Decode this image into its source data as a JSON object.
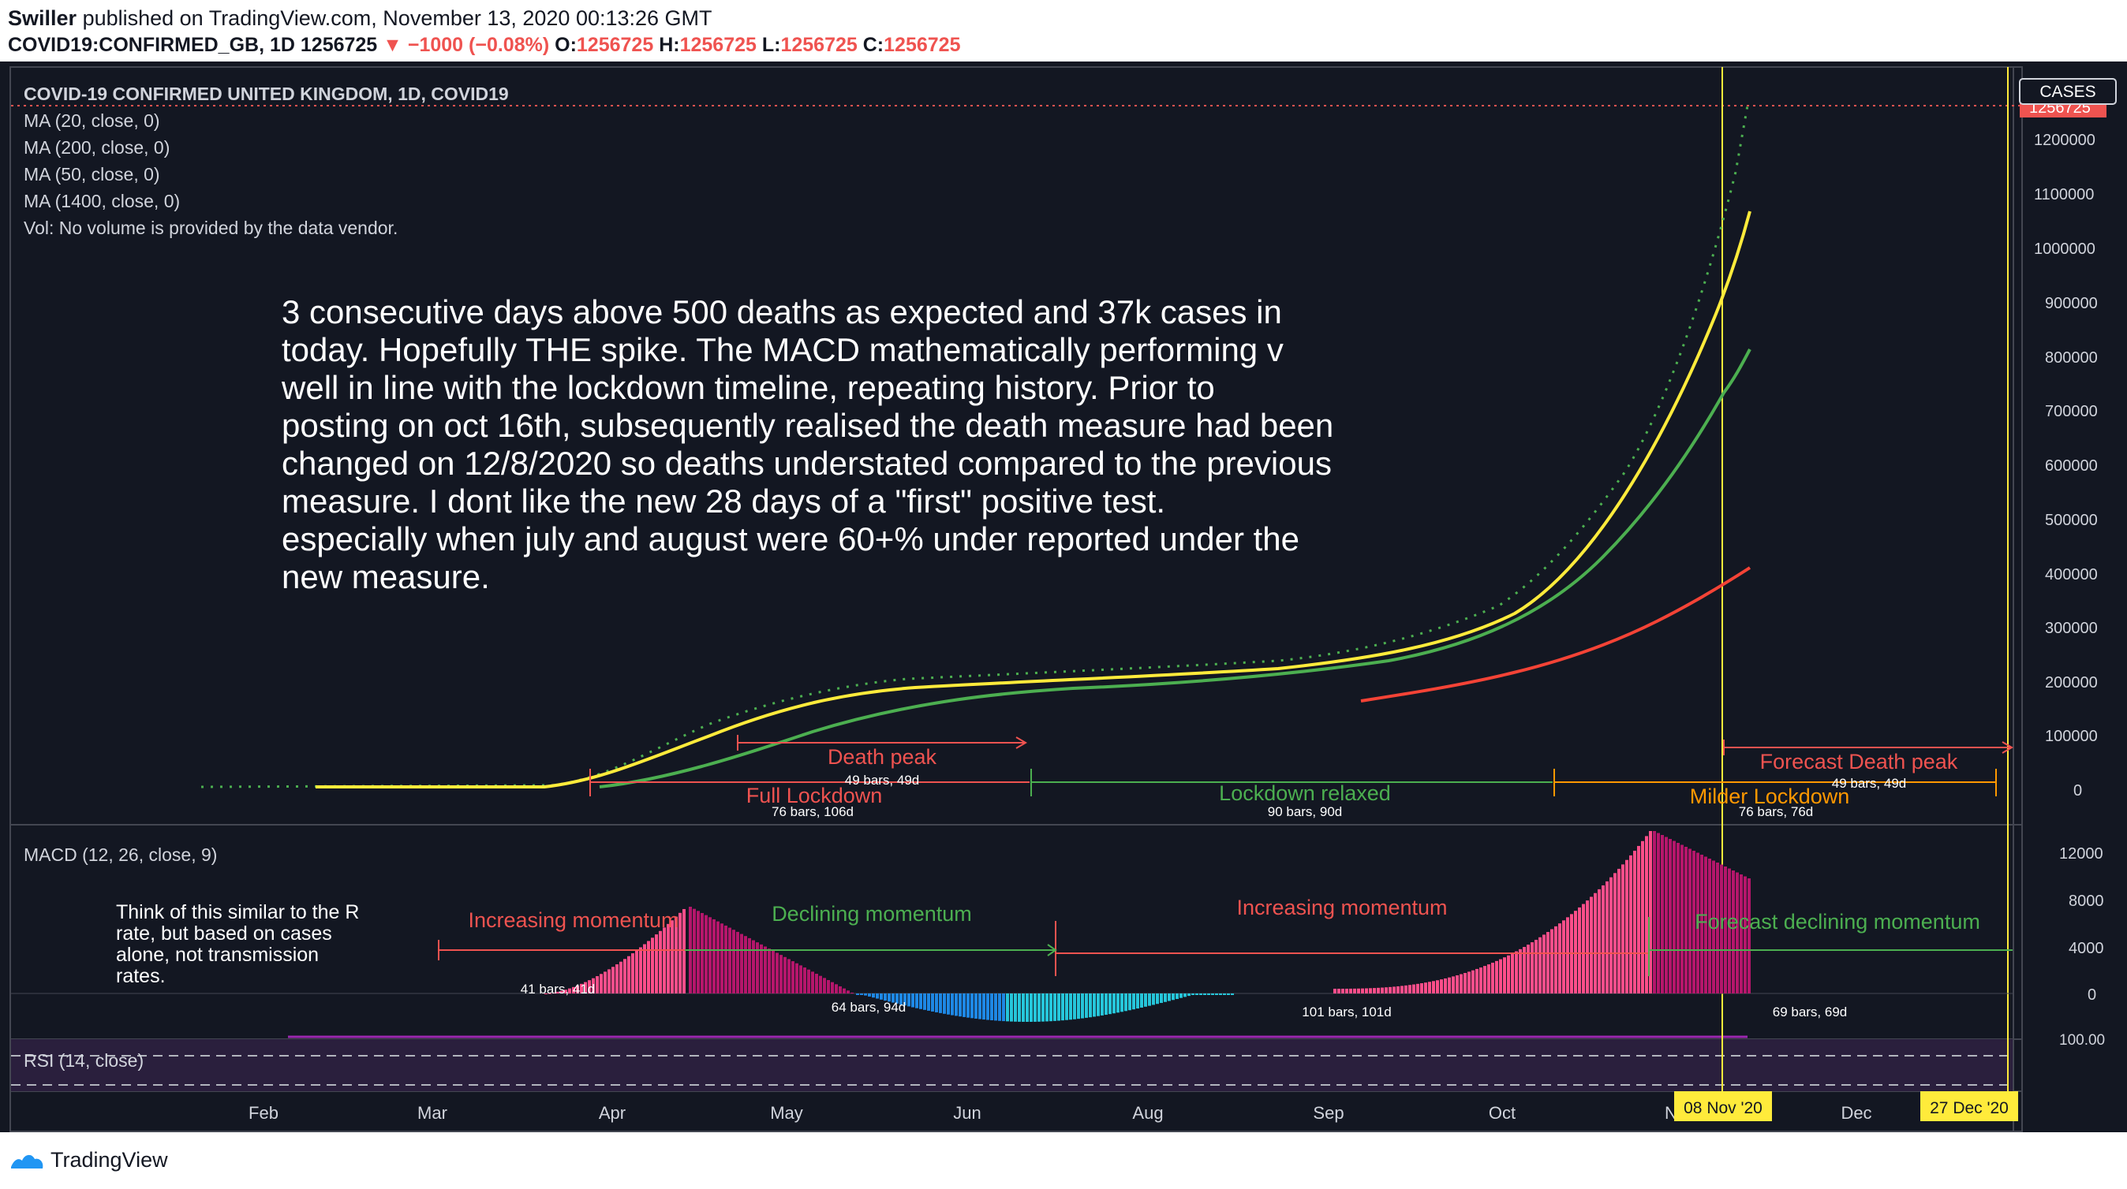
{
  "header": {
    "author": "Swiller",
    "published_text": "published on TradingView.com, November 13, 2020 00:13:26 GMT",
    "symbol_line": "COVID19:CONFIRMED_GB, 1D  1256725",
    "change": "−1000 (−0.08%)",
    "o_label": "O:",
    "o_value": "1256725",
    "h_label": "H:",
    "h_value": "1256725",
    "l_label": "L:",
    "l_value": "1256725",
    "c_label": "C:",
    "c_value": "1256725"
  },
  "legend": {
    "title": "COVID-19 CONFIRMED UNITED KINGDOM, 1D, COVID19",
    "ma20": "MA (20, close, 0)",
    "ma200": "MA (200, close, 0)",
    "ma50": "MA (50, close, 0)",
    "ma1400": "MA (1400, close, 0)",
    "vol": "Vol: No volume is provided by the data vendor."
  },
  "annotation": [
    "3 consecutive days above 500 deaths  as expected and 37k cases in",
    "today. Hopefully THE spike. The MACD mathematically performing v",
    "well in line with the lockdown timeline, repeating history. Prior to",
    "posting on oct 16th, subsequently realised the death measure had been",
    "changed on 12/8/2020 so deaths understated compared to the previous",
    "measure. I dont like the new 28 days of a \"first\" positive test.",
    "especially when july and august were 60+% under reported under the",
    "new measure."
  ],
  "price_axis": {
    "ticks": [
      "1200000",
      "1100000",
      "1000000",
      "900000",
      "800000",
      "700000",
      "600000",
      "500000",
      "400000",
      "300000",
      "200000",
      "100000",
      "0"
    ],
    "badge": "CASES",
    "last_price": "1256725"
  },
  "range_labels": {
    "death_peak": "Death peak",
    "death_peak_bars": "49 bars, 49d",
    "full_lockdown": "Full Lockdown",
    "full_lockdown_bars": "76 bars, 106d",
    "lockdown_relaxed": "Lockdown relaxed",
    "lockdown_relaxed_bars": "90 bars, 90d",
    "milder_lockdown": "Milder Lockdown",
    "milder_lockdown_bars": "76 bars, 76d",
    "forecast_death_peak": "Forecast Death peak",
    "forecast_death_peak_bars": "49 bars, 49d"
  },
  "macd": {
    "title": "MACD (12, 26, close, 9)",
    "note": [
      "Think of this similar to the R",
      "rate, but based on cases",
      "alone, not transmission",
      "rates."
    ],
    "increasing1": "Increasing momentum",
    "bars1": "41 bars, 41d",
    "declining": "Declining momentum",
    "bars2": "64 bars, 94d",
    "increasing2": "Increasing momentum",
    "bars3": "101 bars, 101d",
    "forecast_declining": "Forecast declining momentum",
    "bars4": "69 bars, 69d",
    "ticks": [
      "12000",
      "8000",
      "4000",
      "0"
    ]
  },
  "rsi": {
    "title": "RSI (14, close)",
    "tick": "100.00"
  },
  "time_axis": {
    "labels": [
      "Feb",
      "Mar",
      "Apr",
      "May",
      "Jun",
      "Aug",
      "Sep",
      "Oct",
      "N",
      "Dec"
    ],
    "marker1": "08 Nov '20",
    "marker2": "27 Dec '20"
  },
  "footer": {
    "brand": "TradingView"
  },
  "colors": {
    "background": "#131722",
    "ma20": "#ffeb3b",
    "ma50": "#4caf50",
    "ma200": "#f44336",
    "price_dotted": "#4caf50",
    "macd_pos_strong": "#ff4e8a",
    "macd_pos_weak": "#b5166b",
    "macd_neg_strong": "#1e88e5",
    "macd_neg_weak": "#26c6da",
    "accent_red": "#ef5350",
    "accent_green": "#4caf50",
    "accent_orange": "#ff9800"
  }
}
